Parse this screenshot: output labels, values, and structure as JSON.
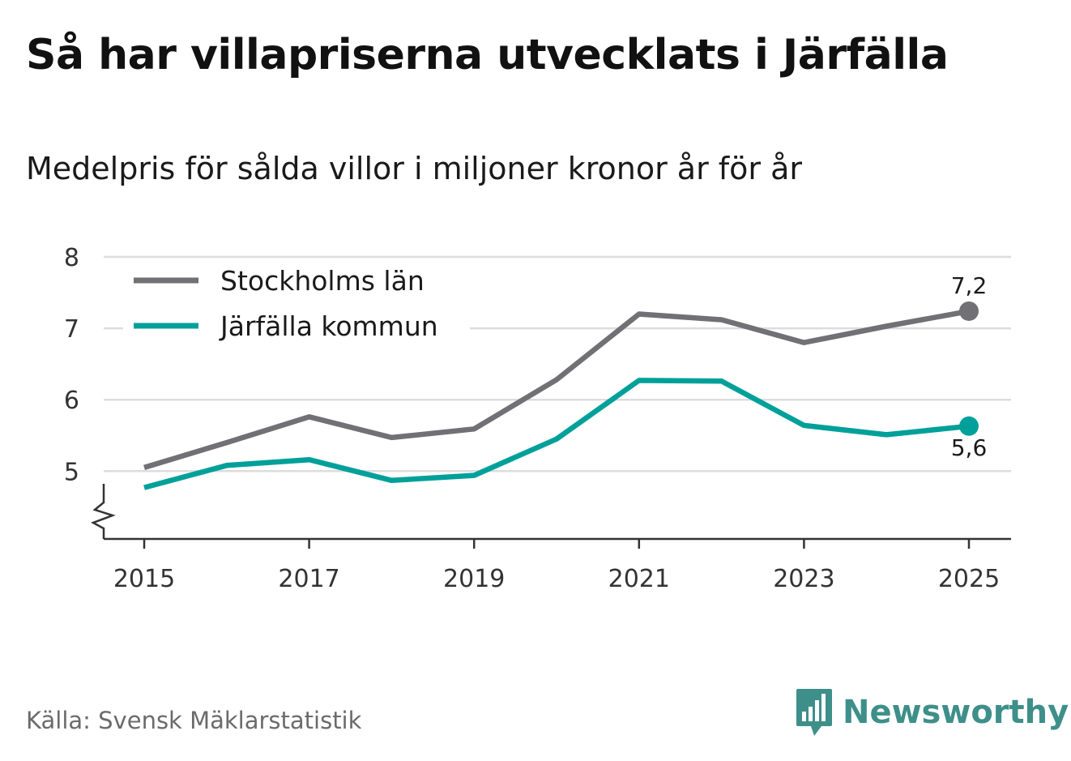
{
  "header": {
    "title": "Så har villapriserna utvecklats i Järfälla",
    "subtitle": "Medelpris för sålda villor i miljoner kronor år för år"
  },
  "footer": {
    "source": "Källa: Svensk Mäklarstatistik",
    "brand": "Newsworthy",
    "brand_icon": "bar-chart-speech-bubble-icon",
    "brand_color": "#3e8f8a"
  },
  "chart_data": {
    "type": "line",
    "title": "Så har villapriserna utvecklats i Järfälla",
    "subtitle": "Medelpris för sålda villor i miljoner kronor år för år",
    "xlabel": "",
    "ylabel": "",
    "x": [
      2015,
      2016,
      2017,
      2018,
      2019,
      2020,
      2021,
      2022,
      2023,
      2024,
      2025
    ],
    "x_ticks": [
      "2015",
      "2017",
      "2019",
      "2021",
      "2023",
      "2025"
    ],
    "y_ticks": [
      "5",
      "6",
      "7",
      "8"
    ],
    "ylim": [
      4.05,
      8
    ],
    "y_axis_break": true,
    "grid": true,
    "legend_position": "top-left",
    "series": [
      {
        "name": "Stockholms län",
        "color": "#707075",
        "values": [
          5.05,
          5.4,
          5.76,
          5.47,
          5.59,
          6.28,
          7.2,
          7.12,
          6.8,
          7.03,
          7.24
        ],
        "end_label": "7,2"
      },
      {
        "name": "Järfälla kommun",
        "color": "#00a09a",
        "values": [
          4.77,
          5.08,
          5.16,
          4.87,
          4.94,
          5.45,
          6.27,
          6.26,
          5.64,
          5.51,
          5.63
        ],
        "end_label": "5,6"
      }
    ]
  }
}
